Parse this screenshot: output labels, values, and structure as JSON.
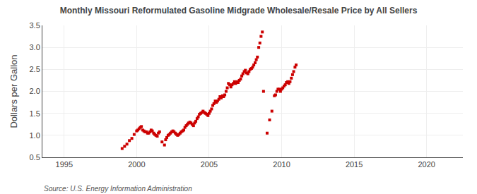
{
  "chart_data": {
    "type": "scatter",
    "title": "Monthly Missouri Reformulated Gasoline Midgrade Wholesale/Resale Price by All Sellers",
    "ylabel": "Dollars per Gallon",
    "source": "Source: U.S. Energy Information Administration",
    "color": "#cc0000",
    "marker": "square",
    "grid": true,
    "xlim": [
      1993.5,
      2022.5
    ],
    "ylim": [
      0.5,
      3.5
    ],
    "xticks": [
      1995,
      2000,
      2005,
      2010,
      2015,
      2020
    ],
    "yticks": [
      0.5,
      {
        "value": 1.0,
        "label": "1.0"
      },
      1.5,
      {
        "value": 2.0,
        "label": "2.0"
      },
      2.5,
      {
        "value": 3.0,
        "label": "3.0"
      },
      3.5
    ],
    "x": [
      1999.0,
      1999.17,
      1999.33,
      1999.5,
      1999.67,
      1999.83,
      2000.0,
      2000.08,
      2000.17,
      2000.25,
      2000.33,
      2000.42,
      2000.5,
      2000.58,
      2000.67,
      2000.75,
      2000.83,
      2000.92,
      2001.0,
      2001.08,
      2001.17,
      2001.25,
      2001.33,
      2001.42,
      2001.5,
      2001.58,
      2001.75,
      2001.92,
      2002.0,
      2002.08,
      2002.17,
      2002.25,
      2002.33,
      2002.42,
      2002.5,
      2002.58,
      2002.67,
      2002.75,
      2002.83,
      2002.92,
      2003.0,
      2003.08,
      2003.17,
      2003.25,
      2003.33,
      2003.42,
      2003.5,
      2003.58,
      2003.67,
      2003.75,
      2003.83,
      2003.92,
      2004.0,
      2004.08,
      2004.17,
      2004.25,
      2004.33,
      2004.42,
      2004.5,
      2004.58,
      2004.67,
      2004.75,
      2004.83,
      2004.92,
      2005.0,
      2005.08,
      2005.17,
      2005.25,
      2005.33,
      2005.42,
      2005.5,
      2005.58,
      2005.67,
      2005.75,
      2005.83,
      2005.92,
      2006.0,
      2006.08,
      2006.17,
      2006.25,
      2006.33,
      2006.42,
      2006.5,
      2006.58,
      2006.67,
      2006.75,
      2006.83,
      2006.92,
      2007.0,
      2007.08,
      2007.17,
      2007.25,
      2007.33,
      2007.42,
      2007.5,
      2007.58,
      2007.67,
      2007.75,
      2007.83,
      2007.92,
      2008.0,
      2008.08,
      2008.17,
      2008.25,
      2008.33,
      2008.42,
      2008.5,
      2008.58,
      2008.67,
      2008.75,
      2009.0,
      2009.17,
      2009.33,
      2009.5,
      2009.58,
      2009.67,
      2009.75,
      2009.83,
      2009.92,
      2010.0,
      2010.08,
      2010.17,
      2010.25,
      2010.33,
      2010.42,
      2010.5,
      2010.58,
      2010.67,
      2010.75,
      2010.83,
      2010.92,
      2011.0
    ],
    "values": [
      0.7,
      0.75,
      0.8,
      0.88,
      0.93,
      1.02,
      1.1,
      1.12,
      1.15,
      1.18,
      1.2,
      1.12,
      1.1,
      1.08,
      1.08,
      1.05,
      1.05,
      1.08,
      1.12,
      1.1,
      1.05,
      1.02,
      1.0,
      0.98,
      1.05,
      1.08,
      0.85,
      0.78,
      0.9,
      0.95,
      1.0,
      1.02,
      1.05,
      1.08,
      1.1,
      1.08,
      1.05,
      1.02,
      1.0,
      1.02,
      1.05,
      1.08,
      1.1,
      1.12,
      1.18,
      1.22,
      1.25,
      1.28,
      1.3,
      1.28,
      1.25,
      1.22,
      1.28,
      1.32,
      1.38,
      1.42,
      1.48,
      1.5,
      1.52,
      1.55,
      1.52,
      1.5,
      1.48,
      1.45,
      1.5,
      1.55,
      1.6,
      1.68,
      1.72,
      1.78,
      1.75,
      1.78,
      1.82,
      1.88,
      1.85,
      1.9,
      1.88,
      1.92,
      2.0,
      2.08,
      2.18,
      2.15,
      2.1,
      2.15,
      2.18,
      2.22,
      2.18,
      2.22,
      2.2,
      2.25,
      2.28,
      2.35,
      2.4,
      2.45,
      2.48,
      2.42,
      2.4,
      2.45,
      2.5,
      2.52,
      2.55,
      2.6,
      2.65,
      2.72,
      2.78,
      3.0,
      3.1,
      3.25,
      3.35,
      2.0,
      1.05,
      1.35,
      1.55,
      1.9,
      1.92,
      2.0,
      2.05,
      2.05,
      2.0,
      2.05,
      2.08,
      2.12,
      2.15,
      2.2,
      2.22,
      2.18,
      2.22,
      2.3,
      2.38,
      2.45,
      2.55,
      2.6
    ]
  }
}
